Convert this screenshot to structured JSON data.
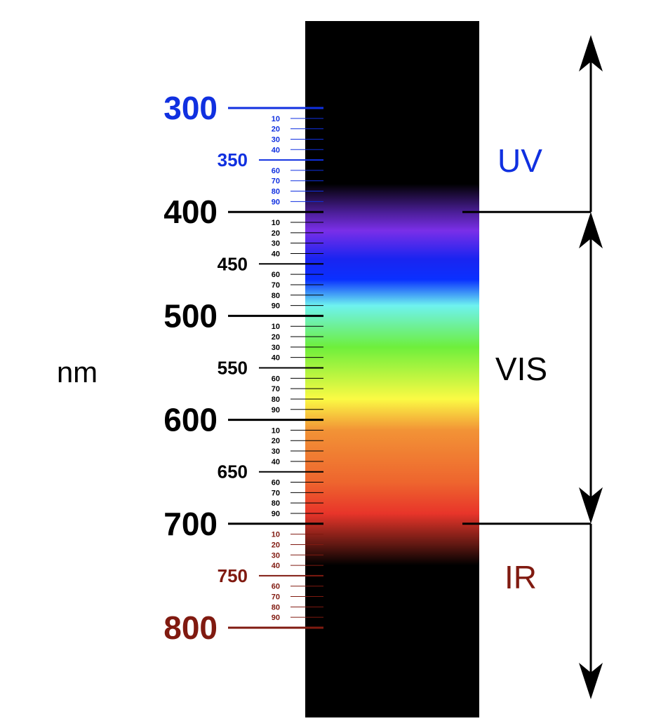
{
  "unit_label": "nm",
  "regions": {
    "uv": "UV",
    "vis": "VIS",
    "ir": "IR"
  },
  "colors": {
    "uv": "#1030e0",
    "visible": "#000000",
    "ir": "#801a10"
  },
  "scale": {
    "min_nm": 300,
    "max_nm": 800,
    "major": [
      {
        "value": 300,
        "label": "300",
        "band": "uv"
      },
      {
        "value": 400,
        "label": "400",
        "band": "visible"
      },
      {
        "value": 500,
        "label": "500",
        "band": "visible"
      },
      {
        "value": 600,
        "label": "600",
        "band": "visible"
      },
      {
        "value": 700,
        "label": "700",
        "band": "visible"
      },
      {
        "value": 800,
        "label": "800",
        "band": "ir"
      }
    ],
    "half": [
      {
        "value": 350,
        "label": "350",
        "band": "uv"
      },
      {
        "value": 450,
        "label": "450",
        "band": "visible"
      },
      {
        "value": 550,
        "label": "550",
        "band": "visible"
      },
      {
        "value": 650,
        "label": "650",
        "band": "visible"
      },
      {
        "value": 750,
        "label": "750",
        "band": "ir"
      }
    ],
    "minor_labels": [
      "10",
      "20",
      "30",
      "40",
      "60",
      "70",
      "80",
      "90"
    ]
  },
  "boundaries": {
    "uv_visible_nm": 400,
    "visible_ir_nm": 700
  },
  "spectrum_gradient": [
    {
      "nm": 373,
      "color": "#000000"
    },
    {
      "nm": 400,
      "color": "#4a1e96"
    },
    {
      "nm": 418,
      "color": "#7a2fe8"
    },
    {
      "nm": 445,
      "color": "#1a24f0"
    },
    {
      "nm": 465,
      "color": "#0a30ff"
    },
    {
      "nm": 490,
      "color": "#6ef2f0"
    },
    {
      "nm": 530,
      "color": "#6eef3c"
    },
    {
      "nm": 580,
      "color": "#fbfa44"
    },
    {
      "nm": 610,
      "color": "#f29336"
    },
    {
      "nm": 660,
      "color": "#ee652e"
    },
    {
      "nm": 690,
      "color": "#e8352a"
    },
    {
      "nm": 720,
      "color": "#601812"
    },
    {
      "nm": 740,
      "color": "#000000"
    }
  ]
}
